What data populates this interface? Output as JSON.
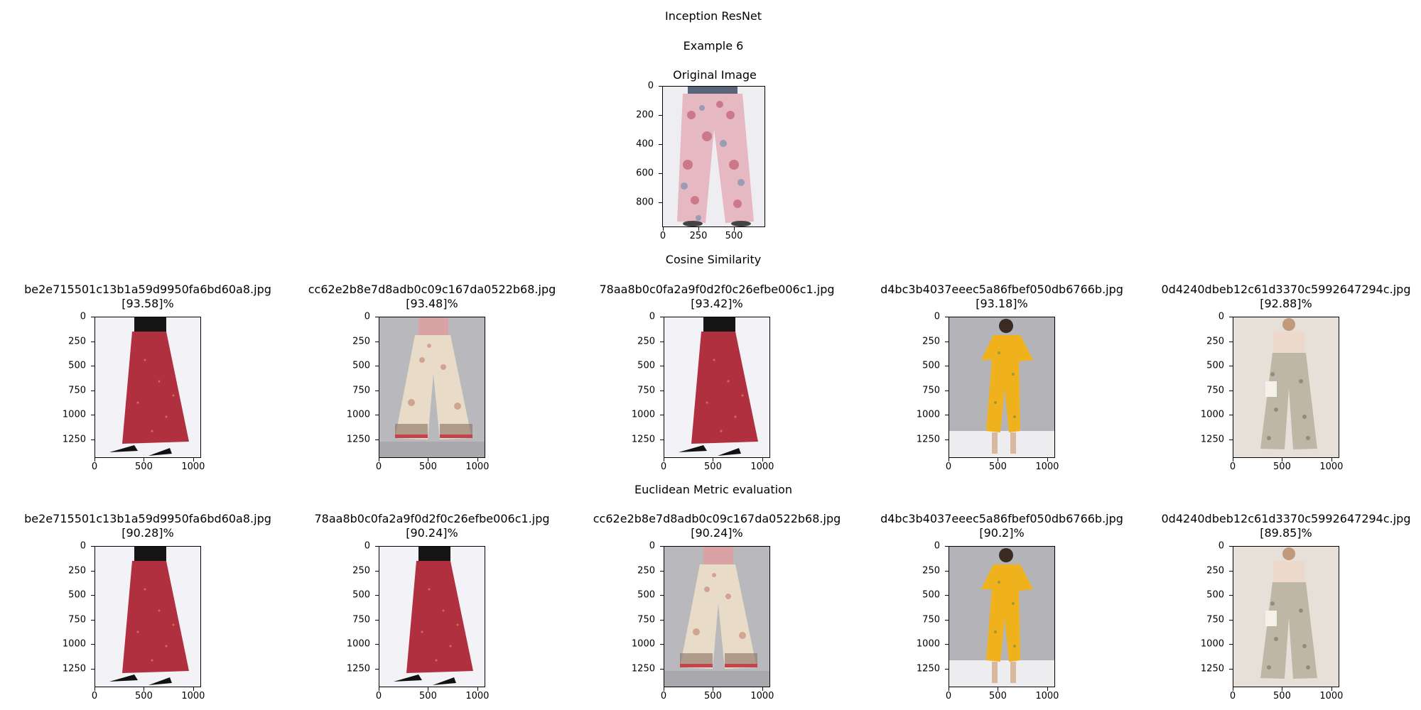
{
  "figure": {
    "title": "Inception ResNet",
    "example_label": "Example 6"
  },
  "original": {
    "title": "Original Image",
    "y_ticks": [
      "0",
      "200",
      "400",
      "600",
      "800"
    ],
    "x_ticks": [
      "0",
      "250",
      "500"
    ],
    "image": "floral-print-palazzo-pants"
  },
  "cosine": {
    "title": "Cosine Similarity",
    "results": [
      {
        "file": "be2e715501c13b1a59d9950fa6bd60a8.jpg",
        "score": "[93.58]%",
        "image": "red-maxi-skirt"
      },
      {
        "file": "cc62e2b8e7d8adb0c09c167da0522b68.jpg",
        "score": "[93.48]%",
        "image": "printed-sharara-pants"
      },
      {
        "file": "78aa8b0c0fa2a9f0d2f0c26efbe006c1.jpg",
        "score": "[93.42]%",
        "image": "red-maxi-skirt"
      },
      {
        "file": "d4bc3b4037eeec5a86fbef050db6766b.jpg",
        "score": "[93.18]%",
        "image": "yellow-floral-jumpsuit"
      },
      {
        "file": "0d4240dbeb12c61d3370c5992647294c.jpg",
        "score": "[92.88]%",
        "image": "beige-print-palazzo"
      }
    ]
  },
  "euclidean": {
    "title": "Euclidean Metric evaluation",
    "results": [
      {
        "file": "be2e715501c13b1a59d9950fa6bd60a8.jpg",
        "score": "[90.28]%",
        "image": "red-maxi-skirt"
      },
      {
        "file": "78aa8b0c0fa2a9f0d2f0c26efbe006c1.jpg",
        "score": "[90.24]%",
        "image": "red-maxi-skirt"
      },
      {
        "file": "cc62e2b8e7d8adb0c09c167da0522b68.jpg",
        "score": "[90.24]%",
        "image": "printed-sharara-pants"
      },
      {
        "file": "d4bc3b4037eeec5a86fbef050db6766b.jpg",
        "score": "[90.2]%",
        "image": "yellow-floral-jumpsuit"
      },
      {
        "file": "0d4240dbeb12c61d3370c5992647294c.jpg",
        "score": "[89.85]%",
        "image": "beige-print-palazzo"
      }
    ]
  },
  "result_axes": {
    "y_ticks": [
      "0",
      "250",
      "500",
      "750",
      "1000",
      "1250"
    ],
    "x_ticks": [
      "0",
      "500",
      "1000"
    ]
  },
  "colors": {
    "red_skirt": "#b0303f",
    "yellow_dress": "#f0b21c",
    "pink_top": "#d9a3a6",
    "floral_pink": "#e9b9c3",
    "beige_print": "#bfb7a5"
  }
}
